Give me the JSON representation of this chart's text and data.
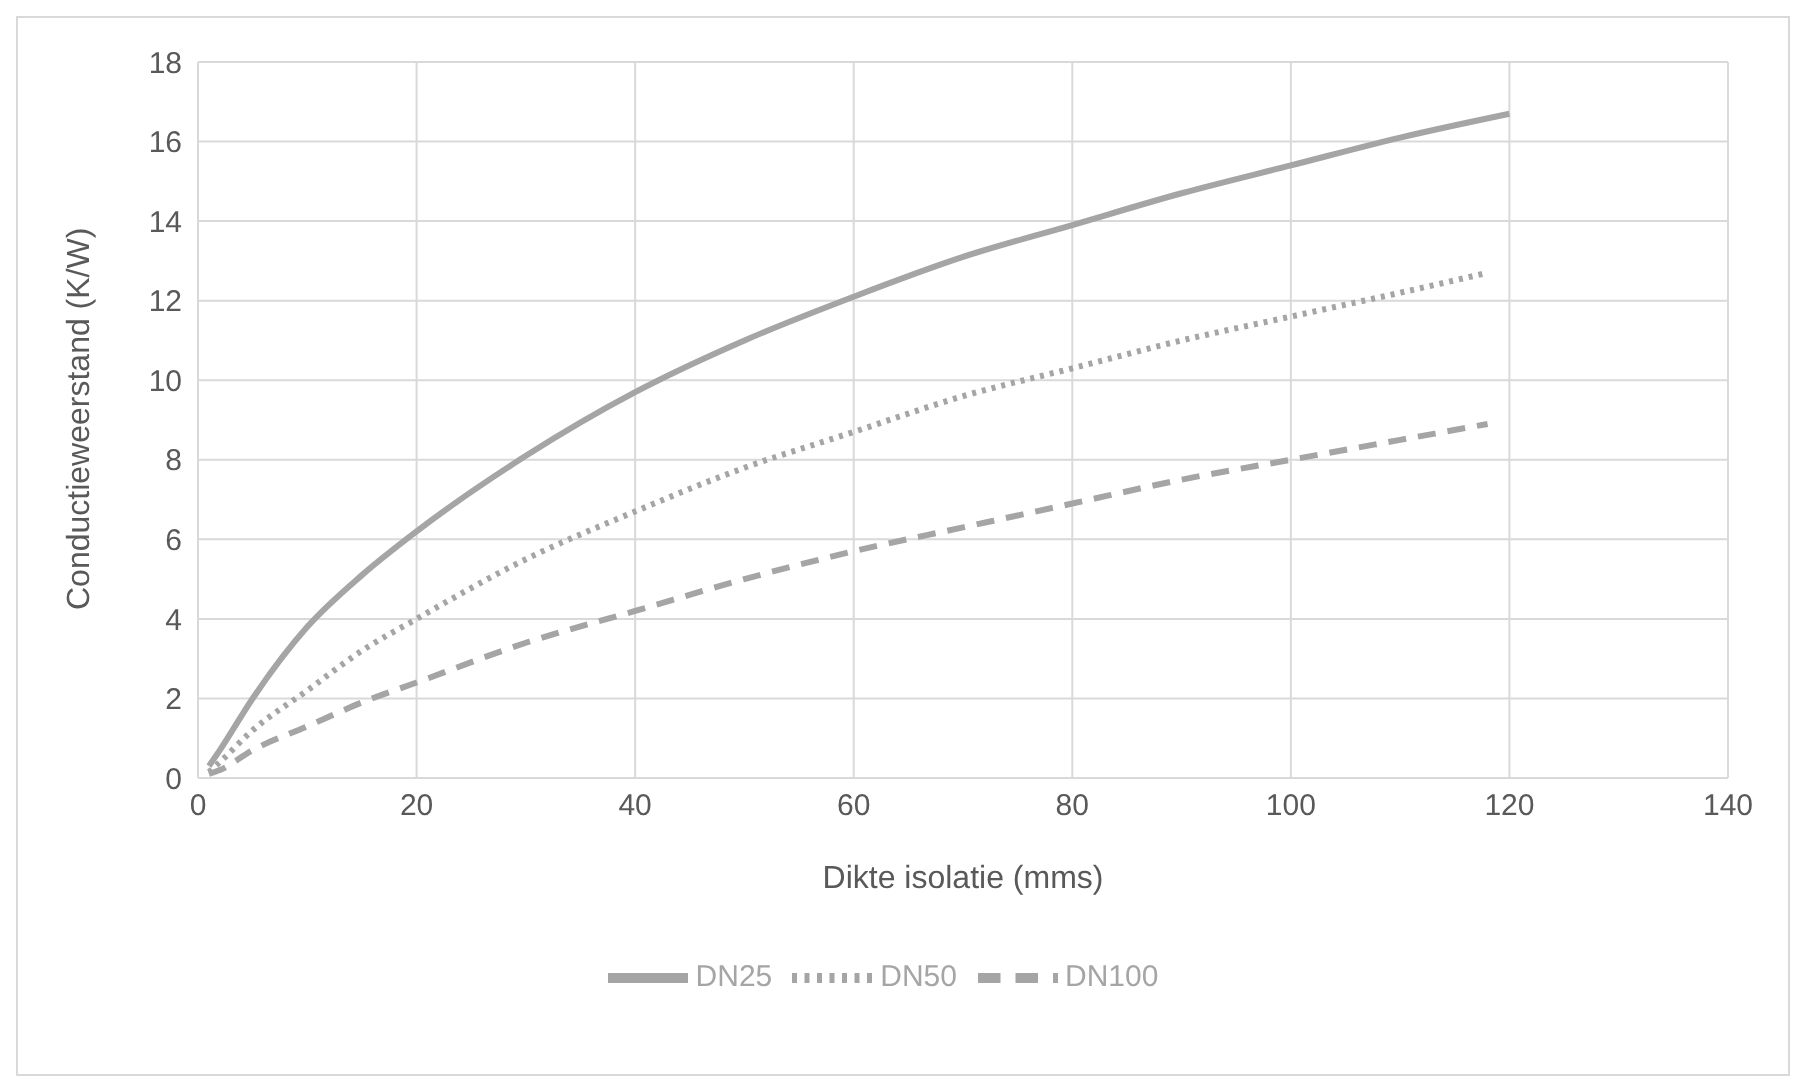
{
  "chart_data": {
    "type": "line",
    "xlabel": "Dikte isolatie (mms)",
    "ylabel": "Conductieweerstand (K/W)",
    "xlim": [
      0,
      140
    ],
    "xticks": [
      0,
      20,
      40,
      60,
      80,
      100,
      120,
      140
    ],
    "ylim": [
      0,
      18
    ],
    "yticks": [
      0,
      2,
      4,
      6,
      8,
      10,
      12,
      14,
      16,
      18
    ],
    "grid": true,
    "legend": "bottom",
    "marker": "none",
    "series": [
      {
        "name": "DN25",
        "color": "#a5a5a5",
        "line_style": "solid",
        "x": [
          1,
          2,
          5,
          10,
          15,
          20,
          30,
          40,
          50,
          60,
          70,
          80,
          90,
          100,
          110,
          120
        ],
        "values": [
          0.3,
          0.7,
          2.0,
          3.8,
          5.1,
          6.2,
          8.1,
          9.7,
          11.0,
          12.1,
          13.1,
          13.9,
          14.7,
          15.4,
          16.1,
          16.7
        ]
      },
      {
        "name": "DN50",
        "color": "#a5a5a5",
        "line_style": "dotted",
        "x": [
          1,
          2,
          5,
          10,
          15,
          20,
          30,
          40,
          50,
          60,
          70,
          80,
          90,
          100,
          110,
          118
        ],
        "values": [
          0.15,
          0.4,
          1.2,
          2.2,
          3.2,
          4.0,
          5.5,
          6.7,
          7.8,
          8.7,
          9.6,
          10.3,
          11.0,
          11.6,
          12.2,
          12.7
        ]
      },
      {
        "name": "DN100",
        "color": "#a5a5a5",
        "line_style": "dashed",
        "x": [
          1,
          2,
          5,
          10,
          15,
          20,
          30,
          40,
          50,
          60,
          70,
          80,
          90,
          100,
          110,
          118
        ],
        "values": [
          0.1,
          0.2,
          0.7,
          1.3,
          1.9,
          2.4,
          3.4,
          4.2,
          5.0,
          5.7,
          6.3,
          6.9,
          7.5,
          8.0,
          8.5,
          8.9
        ]
      }
    ]
  }
}
